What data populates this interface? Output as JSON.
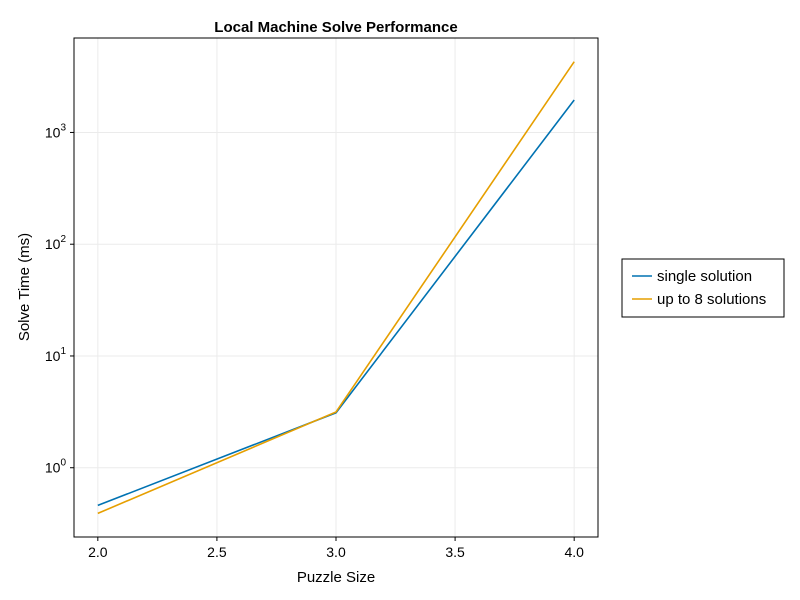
{
  "chart_data": {
    "type": "line",
    "title": "Local Machine Solve Performance",
    "xlabel": "Puzzle Size",
    "ylabel": "Solve Time (ms)",
    "x_scale": "linear",
    "y_scale": "log10",
    "xlim": [
      1.9,
      4.1
    ],
    "ylim": [
      0.24,
      7000
    ],
    "x_ticks": [
      {
        "value": 2.0,
        "label": "2.0"
      },
      {
        "value": 2.5,
        "label": "2.5"
      },
      {
        "value": 3.0,
        "label": "3.0"
      },
      {
        "value": 3.5,
        "label": "3.5"
      },
      {
        "value": 4.0,
        "label": "4.0"
      }
    ],
    "y_ticks": [
      {
        "value": 1,
        "base": "10",
        "exp": "0"
      },
      {
        "value": 10,
        "base": "10",
        "exp": "1"
      },
      {
        "value": 100,
        "base": "10",
        "exp": "2"
      },
      {
        "value": 1000,
        "base": "10",
        "exp": "3"
      }
    ],
    "grid": true,
    "legend_position": "right",
    "series": [
      {
        "name": "single solution",
        "color": "#0072b2",
        "x": [
          2,
          3,
          4
        ],
        "y": [
          0.46,
          3.1,
          1950
        ]
      },
      {
        "name": "up to 8 solutions",
        "color": "#e69f00",
        "x": [
          2,
          3,
          4
        ],
        "y": [
          0.39,
          3.15,
          4300
        ]
      }
    ]
  }
}
